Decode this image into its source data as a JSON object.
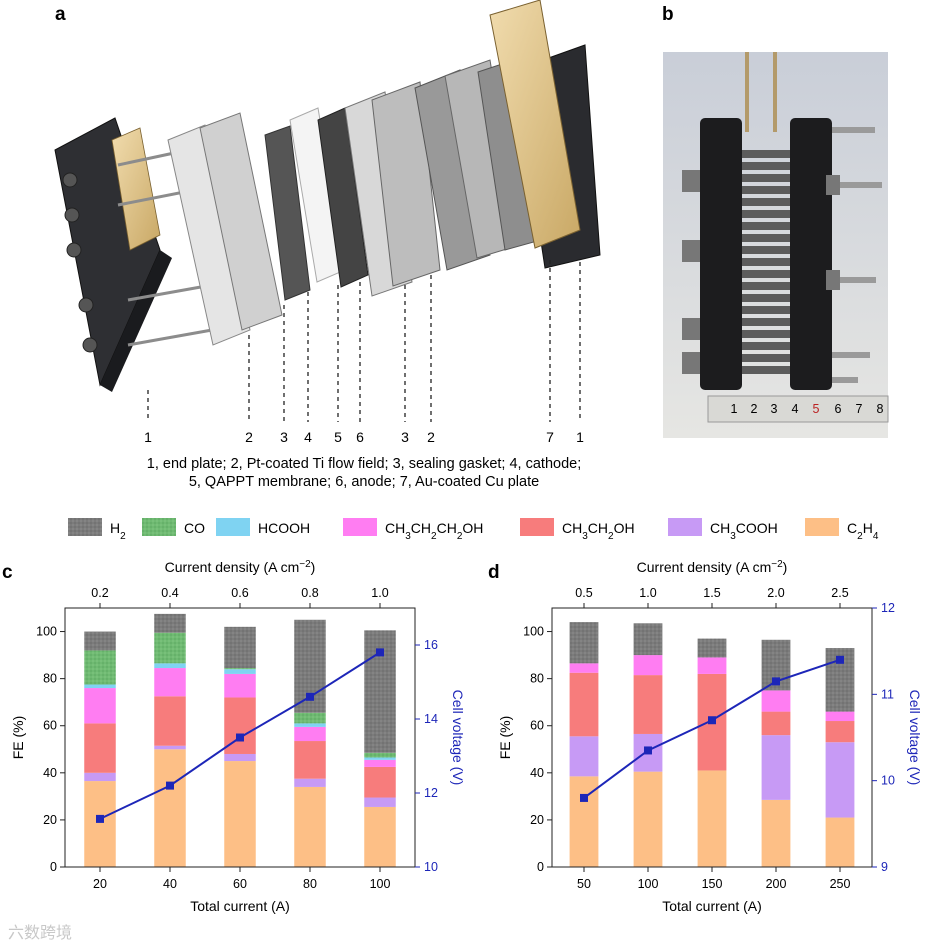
{
  "panels": {
    "a": {
      "label": "a",
      "callouts": [
        {
          "n": "1",
          "name": "end plate"
        },
        {
          "n": "2",
          "name": "Pt-coated Ti flow field"
        },
        {
          "n": "3",
          "name": "sealing gasket"
        },
        {
          "n": "4",
          "name": "cathode"
        },
        {
          "n": "5",
          "name": "QAPPT membrane"
        },
        {
          "n": "6",
          "name": "anode"
        },
        {
          "n": "3",
          "name": "sealing gasket"
        },
        {
          "n": "2",
          "name": "Pt-coated Ti flow field"
        },
        {
          "n": "7",
          "name": "Au-coated Cu plate"
        },
        {
          "n": "1",
          "name": "end plate"
        }
      ],
      "caption_line1": "1, end plate; 2, Pt-coated Ti flow field; 3, sealing gasket; 4, cathode;",
      "caption_line2": "5, QAPPT membrane; 6, anode; 7, Au-coated Cu plate"
    },
    "b": {
      "label": "b",
      "ruler_numbers": [
        "1",
        "2",
        "3",
        "4",
        "5",
        "6",
        "7",
        "8"
      ]
    },
    "c": {
      "label": "c"
    },
    "d": {
      "label": "d"
    }
  },
  "legend": [
    {
      "key": "H2",
      "label": "H",
      "sub": "2",
      "tail": "",
      "color": "#7b7b7b",
      "hatch": true
    },
    {
      "key": "CO",
      "label": "CO",
      "sub": "",
      "tail": "",
      "color": "#6fba72",
      "hatch": true
    },
    {
      "key": "HCOOH",
      "label": "HCOOH",
      "sub": "",
      "tail": "",
      "color": "#7fd3f2",
      "hatch": false
    },
    {
      "key": "CH3CH2CH2OH",
      "label": "CH",
      "parts": [
        "CH",
        "3",
        "CH",
        "2",
        "CH",
        "2",
        "OH"
      ],
      "color": "#ff7df2",
      "hatch": false
    },
    {
      "key": "CH3CH2OH",
      "label": "CH",
      "parts": [
        "CH",
        "3",
        "CH",
        "2",
        "OH"
      ],
      "color": "#f77c7c",
      "hatch": false
    },
    {
      "key": "CH3COOH",
      "label": "CH",
      "parts": [
        "CH",
        "3",
        "COOH"
      ],
      "color": "#c79af5",
      "hatch": false
    },
    {
      "key": "C2H4",
      "label": "C",
      "parts": [
        "C",
        "2",
        "H",
        "4"
      ],
      "color": "#fdbf86",
      "hatch": false
    }
  ],
  "chart_data": [
    {
      "panel": "c",
      "type": "bar",
      "stacked": true,
      "xlabel": "Total current  (A)",
      "top_xlabel": "Current density (A cm",
      "top_xlabel_sup": "−2",
      "top_xlabel_end": ")",
      "ylabel": "FE (%)",
      "y2label": "Cell voltage (V)",
      "categories": [
        "20",
        "40",
        "60",
        "80",
        "100"
      ],
      "top_categories": [
        "0.2",
        "0.4",
        "0.6",
        "0.8",
        "1.0"
      ],
      "ylim": [
        0,
        110
      ],
      "yticks": [
        0,
        20,
        40,
        60,
        80,
        100
      ],
      "y2lim": [
        10,
        17
      ],
      "y2ticks": [
        10,
        12,
        14,
        16
      ],
      "series": [
        {
          "key": "C2H4",
          "values": [
            36.5,
            50,
            45,
            34,
            25.5
          ]
        },
        {
          "key": "CH3COOH",
          "values": [
            3.5,
            1.5,
            3,
            3.5,
            4
          ]
        },
        {
          "key": "CH3CH2OH",
          "values": [
            21,
            21,
            24,
            16,
            13
          ]
        },
        {
          "key": "CH3CH2CH2OH",
          "values": [
            15,
            12,
            10,
            6,
            3
          ]
        },
        {
          "key": "HCOOH",
          "values": [
            1.5,
            2,
            2,
            1.5,
            1
          ]
        },
        {
          "key": "CO",
          "values": [
            14.5,
            13,
            0.5,
            4.5,
            2
          ]
        },
        {
          "key": "H2",
          "values": [
            8,
            8,
            17.5,
            39.5,
            52
          ]
        }
      ],
      "line": {
        "name": "Cell voltage",
        "color": "#1d26b8",
        "values": [
          11.3,
          12.2,
          13.5,
          14.6,
          15.8
        ]
      }
    },
    {
      "panel": "d",
      "type": "bar",
      "stacked": true,
      "xlabel": "Total current  (A)",
      "top_xlabel": "Current density (A cm",
      "top_xlabel_sup": "−2",
      "top_xlabel_end": ")",
      "ylabel": "FE (%)",
      "y2label": "Cell voltage (V)",
      "categories": [
        "50",
        "100",
        "150",
        "200",
        "250"
      ],
      "top_categories": [
        "0.5",
        "1.0",
        "1.5",
        "2.0",
        "2.5"
      ],
      "ylim": [
        0,
        110
      ],
      "yticks": [
        0,
        20,
        40,
        60,
        80,
        100
      ],
      "y2lim": [
        9,
        12
      ],
      "y2ticks": [
        9,
        10,
        11,
        12
      ],
      "series": [
        {
          "key": "C2H4",
          "values": [
            38.5,
            40.5,
            41,
            28.5,
            21
          ]
        },
        {
          "key": "CH3COOH",
          "values": [
            17,
            16,
            0,
            27.5,
            32
          ]
        },
        {
          "key": "CH3CH2OH",
          "values": [
            27,
            25,
            41,
            10,
            9
          ]
        },
        {
          "key": "CH3CH2CH2OH",
          "values": [
            4,
            8.5,
            7,
            9,
            4
          ]
        },
        {
          "key": "HCOOH",
          "values": [
            0,
            0,
            0,
            0,
            0
          ]
        },
        {
          "key": "CO",
          "values": [
            0,
            0,
            0,
            0,
            0
          ]
        },
        {
          "key": "H2",
          "values": [
            17.5,
            13.5,
            8,
            21.5,
            27
          ]
        }
      ],
      "line": {
        "name": "Cell voltage",
        "color": "#1d26b8",
        "values": [
          9.8,
          10.35,
          10.7,
          11.15,
          11.4
        ]
      }
    }
  ],
  "watermark": "六数跨境"
}
